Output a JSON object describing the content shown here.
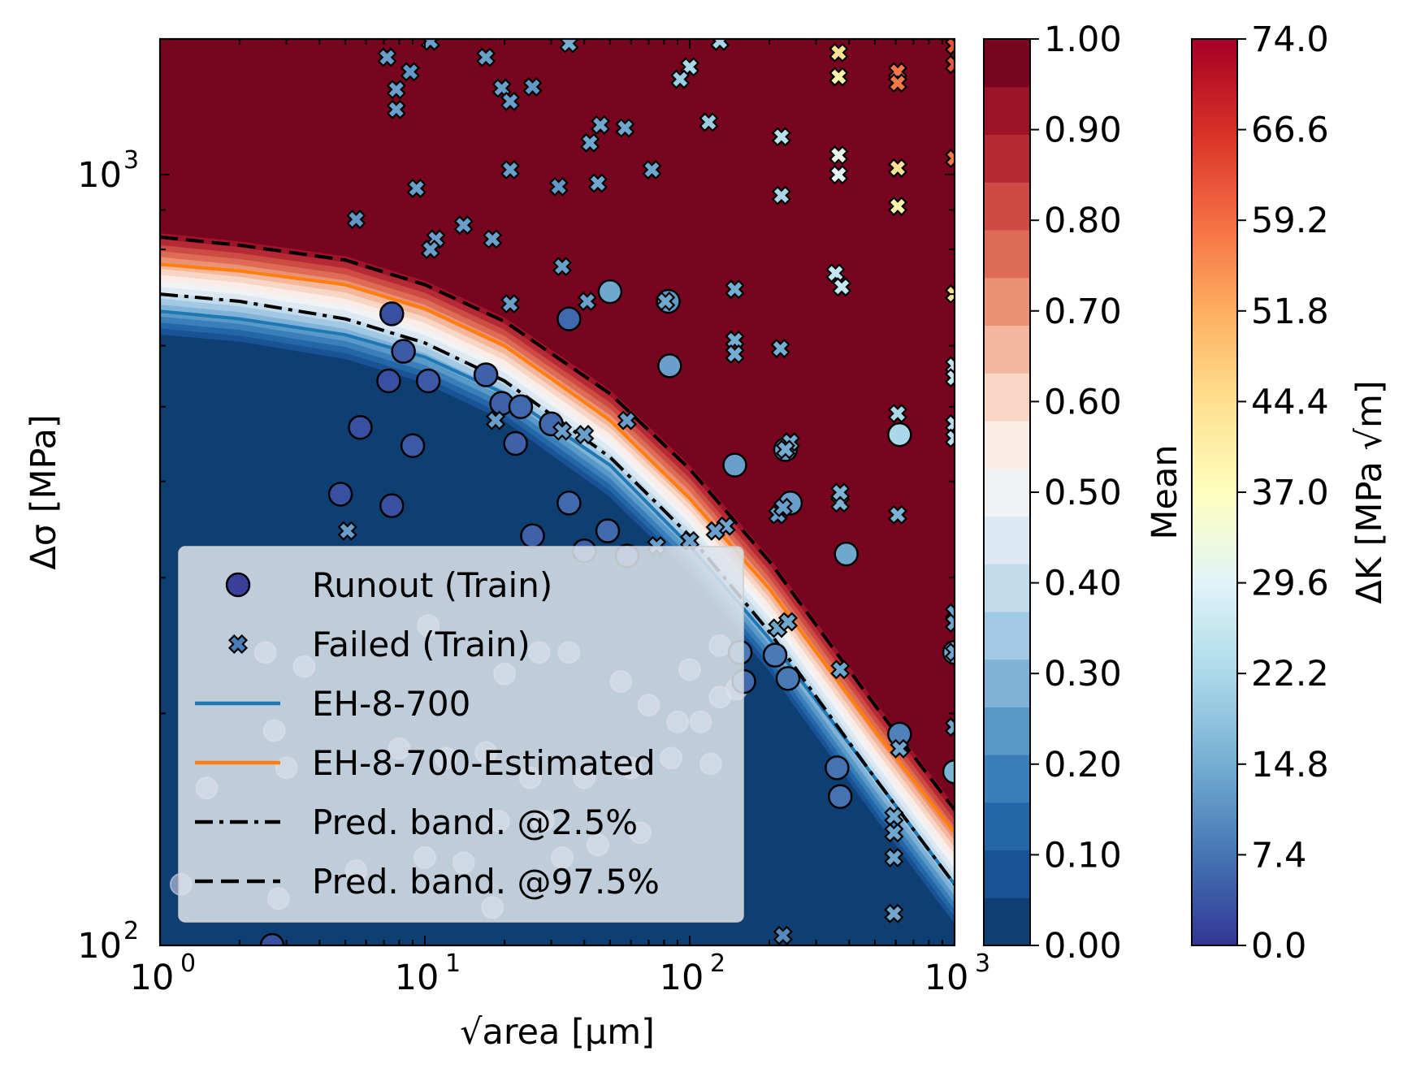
{
  "chart_data": {
    "type": "scatter",
    "title": "",
    "xlabel": "√area [μm]",
    "ylabel": "Δσ [MPa]",
    "xscale": "log",
    "yscale": "log",
    "xlim": [
      1,
      1000
    ],
    "ylim": [
      100,
      1500
    ],
    "x_ticks": [
      {
        "base": "10",
        "exp": "0"
      },
      {
        "base": "10",
        "exp": "1"
      },
      {
        "base": "10",
        "exp": "2"
      },
      {
        "base": "10",
        "exp": "3"
      }
    ],
    "y_ticks": [
      {
        "base": "10",
        "exp": "2",
        "value": 100
      },
      {
        "base": "10",
        "exp": "3",
        "value": 1000
      }
    ],
    "background": "filled contour of mean failure probability (0 below the boundary, 1 above)",
    "mean_colorbar": {
      "label": "Mean",
      "ticks": [
        "0.00",
        "0.10",
        "0.20",
        "0.30",
        "0.40",
        "0.50",
        "0.60",
        "0.70",
        "0.80",
        "0.90",
        "1.00"
      ],
      "colors": [
        "#0d3f73",
        "#1a5296",
        "#2467a8",
        "#3b7fba",
        "#5999c7",
        "#7fb2d6",
        "#a3c8e3",
        "#c3dcec",
        "#dce8f2",
        "#f0f2f4",
        "#faece6",
        "#f8d6c6",
        "#f3b79e",
        "#eb9275",
        "#dd6b55",
        "#cc4b42",
        "#b52a34",
        "#9c1428",
        "#78051f"
      ]
    },
    "dk_colorbar": {
      "label": "ΔK [MPa √m]",
      "ticks": [
        "0.0",
        "7.4",
        "14.8",
        "22.2",
        "29.6",
        "37.0",
        "44.4",
        "51.8",
        "59.2",
        "66.6",
        "74.0"
      ],
      "range": [
        0,
        74
      ],
      "colors": [
        "#313695",
        "#4575b4",
        "#74add1",
        "#abd9e9",
        "#e0f3f8",
        "#ffffbf",
        "#fee090",
        "#fdae61",
        "#f46d43",
        "#d73027",
        "#a50026"
      ]
    },
    "legend": {
      "position": "lower-left",
      "entries": [
        {
          "label": "Runout (Train)",
          "marker": "circle"
        },
        {
          "label": "Failed (Train)",
          "marker": "x"
        },
        {
          "label": "EH-8-700",
          "style": "solid",
          "color": "#1f77b4"
        },
        {
          "label": "EH-8-700-Estimated",
          "style": "solid",
          "color": "#ff7f0e"
        },
        {
          "label": "Pred. band. @2.5%",
          "style": "dashdot",
          "color": "#000000"
        },
        {
          "label": "Pred. band. @97.5%",
          "style": "dashed",
          "color": "#000000"
        }
      ]
    },
    "curves": [
      {
        "name": "EH-8-700",
        "style": "solid",
        "color": "#1f77b4",
        "x": [
          1,
          2,
          5,
          10,
          20,
          50,
          100,
          200,
          500,
          1000
        ],
        "y": [
          665,
          650,
          620,
          580,
          520,
          420,
          330,
          250,
          165,
          120
        ]
      },
      {
        "name": "EH-8-700-Estimated",
        "style": "solid",
        "color": "#ff7f0e",
        "x": [
          1,
          2,
          5,
          10,
          20,
          50,
          100,
          200,
          500,
          1000
        ],
        "y": [
          765,
          750,
          720,
          670,
          600,
          480,
          380,
          290,
          190,
          140
        ]
      },
      {
        "name": "Pred. band. @2.5%",
        "style": "dashdot",
        "color": "#000000",
        "x": [
          1,
          2,
          5,
          10,
          20,
          50,
          100,
          200,
          500,
          1000
        ],
        "y": [
          700,
          685,
          650,
          605,
          540,
          430,
          340,
          255,
          165,
          120
        ]
      },
      {
        "name": "Pred. band. @97.5%",
        "style": "dashed",
        "color": "#000000",
        "x": [
          1,
          2,
          5,
          10,
          20,
          50,
          100,
          200,
          500,
          1000
        ],
        "y": [
          830,
          810,
          775,
          720,
          645,
          520,
          415,
          315,
          205,
          150
        ]
      }
    ],
    "runout_points": [
      {
        "x": 7.5,
        "y": 660,
        "dk": 3
      },
      {
        "x": 8.3,
        "y": 590,
        "dk": 4
      },
      {
        "x": 7.3,
        "y": 540,
        "dk": 3
      },
      {
        "x": 10.3,
        "y": 540,
        "dk": 4
      },
      {
        "x": 5.7,
        "y": 470,
        "dk": 3
      },
      {
        "x": 9.0,
        "y": 445,
        "dk": 4
      },
      {
        "x": 4.8,
        "y": 385,
        "dk": 3
      },
      {
        "x": 7.5,
        "y": 372,
        "dk": 3
      },
      {
        "x": 17,
        "y": 550,
        "dk": 5
      },
      {
        "x": 19.5,
        "y": 505,
        "dk": 5
      },
      {
        "x": 23,
        "y": 500,
        "dk": 6
      },
      {
        "x": 22,
        "y": 448,
        "dk": 5
      },
      {
        "x": 30,
        "y": 475,
        "dk": 6
      },
      {
        "x": 35,
        "y": 650,
        "dk": 6
      },
      {
        "x": 35,
        "y": 375,
        "dk": 6
      },
      {
        "x": 25.5,
        "y": 340,
        "dk": 5
      },
      {
        "x": 49,
        "y": 345,
        "dk": 6
      },
      {
        "x": 40,
        "y": 325,
        "dk": 5
      },
      {
        "x": 58,
        "y": 320,
        "dk": 5
      },
      {
        "x": 50,
        "y": 705,
        "dk": 14
      },
      {
        "x": 83,
        "y": 685,
        "dk": 12
      },
      {
        "x": 84,
        "y": 565,
        "dk": 13
      },
      {
        "x": 148,
        "y": 420,
        "dk": 13
      },
      {
        "x": 240,
        "y": 375,
        "dk": 13
      },
      {
        "x": 230,
        "y": 440,
        "dk": 13
      },
      {
        "x": 390,
        "y": 322,
        "dk": 14
      },
      {
        "x": 155,
        "y": 240,
        "dk": 8
      },
      {
        "x": 160,
        "y": 220,
        "dk": 6
      },
      {
        "x": 210,
        "y": 238,
        "dk": 8
      },
      {
        "x": 235,
        "y": 222,
        "dk": 8
      },
      {
        "x": 360,
        "y": 170,
        "dk": 7
      },
      {
        "x": 370,
        "y": 156,
        "dk": 7
      },
      {
        "x": 620,
        "y": 188,
        "dk": 9
      },
      {
        "x": 1000,
        "y": 240,
        "dk": 14
      },
      {
        "x": 1000,
        "y": 168,
        "dk": 16
      },
      {
        "x": 620,
        "y": 460,
        "dk": 22
      },
      {
        "x": 2.65,
        "y": 100,
        "dk": 3
      }
    ],
    "failed_points": [
      {
        "x": 7.2,
        "y": 1420,
        "dk": 13
      },
      {
        "x": 8.8,
        "y": 1360,
        "dk": 12
      },
      {
        "x": 10.5,
        "y": 1490,
        "dk": 13
      },
      {
        "x": 7.8,
        "y": 1290,
        "dk": 13
      },
      {
        "x": 7.8,
        "y": 1215,
        "dk": 13
      },
      {
        "x": 17,
        "y": 1420,
        "dk": 13
      },
      {
        "x": 19.5,
        "y": 1295,
        "dk": 13
      },
      {
        "x": 25.5,
        "y": 1300,
        "dk": 12
      },
      {
        "x": 21,
        "y": 1245,
        "dk": 13
      },
      {
        "x": 35,
        "y": 1480,
        "dk": 15
      },
      {
        "x": 46,
        "y": 1160,
        "dk": 14
      },
      {
        "x": 57,
        "y": 1150,
        "dk": 14
      },
      {
        "x": 42,
        "y": 1100,
        "dk": 14
      },
      {
        "x": 21,
        "y": 1015,
        "dk": 13
      },
      {
        "x": 32,
        "y": 965,
        "dk": 12
      },
      {
        "x": 45,
        "y": 975,
        "dk": 14
      },
      {
        "x": 72,
        "y": 1015,
        "dk": 14
      },
      {
        "x": 9.3,
        "y": 960,
        "dk": 13
      },
      {
        "x": 5.5,
        "y": 875,
        "dk": 12
      },
      {
        "x": 11,
        "y": 825,
        "dk": 13
      },
      {
        "x": 14,
        "y": 860,
        "dk": 13
      },
      {
        "x": 18,
        "y": 825,
        "dk": 13
      },
      {
        "x": 10.5,
        "y": 800,
        "dk": 13
      },
      {
        "x": 33,
        "y": 760,
        "dk": 13
      },
      {
        "x": 21,
        "y": 680,
        "dk": 13
      },
      {
        "x": 41,
        "y": 685,
        "dk": 13
      },
      {
        "x": 81,
        "y": 685,
        "dk": 14
      },
      {
        "x": 148,
        "y": 710,
        "dk": 15
      },
      {
        "x": 148,
        "y": 610,
        "dk": 15
      },
      {
        "x": 148,
        "y": 585,
        "dk": 15
      },
      {
        "x": 220,
        "y": 595,
        "dk": 15
      },
      {
        "x": 58,
        "y": 480,
        "dk": 13
      },
      {
        "x": 18.5,
        "y": 480,
        "dk": 13
      },
      {
        "x": 33,
        "y": 465,
        "dk": 13
      },
      {
        "x": 40,
        "y": 460,
        "dk": 13
      },
      {
        "x": 5.1,
        "y": 345,
        "dk": 13
      },
      {
        "x": 75,
        "y": 330,
        "dk": 13
      },
      {
        "x": 100,
        "y": 335,
        "dk": 13
      },
      {
        "x": 137,
        "y": 350,
        "dk": 14
      },
      {
        "x": 125,
        "y": 345,
        "dk": 13
      },
      {
        "x": 215,
        "y": 362,
        "dk": 13
      },
      {
        "x": 225,
        "y": 370,
        "dk": 13
      },
      {
        "x": 240,
        "y": 450,
        "dk": 15
      },
      {
        "x": 230,
        "y": 440,
        "dk": 15
      },
      {
        "x": 370,
        "y": 375,
        "dk": 16
      },
      {
        "x": 370,
        "y": 387,
        "dk": 16
      },
      {
        "x": 610,
        "y": 362,
        "dk": 16
      },
      {
        "x": 215,
        "y": 258,
        "dk": 14
      },
      {
        "x": 235,
        "y": 263,
        "dk": 14
      },
      {
        "x": 370,
        "y": 228,
        "dk": 14
      },
      {
        "x": 620,
        "y": 180,
        "dk": 14
      },
      {
        "x": 590,
        "y": 147,
        "dk": 14
      },
      {
        "x": 590,
        "y": 140,
        "dk": 14
      },
      {
        "x": 590,
        "y": 130,
        "dk": 14
      },
      {
        "x": 590,
        "y": 110,
        "dk": 14
      },
      {
        "x": 1000,
        "y": 1390,
        "dk": 62
      },
      {
        "x": 1000,
        "y": 1470,
        "dk": 62
      },
      {
        "x": 1000,
        "y": 1050,
        "dk": 58
      },
      {
        "x": 1000,
        "y": 700,
        "dk": 44
      },
      {
        "x": 1000,
        "y": 565,
        "dk": 26
      },
      {
        "x": 1000,
        "y": 545,
        "dk": 26
      },
      {
        "x": 1000,
        "y": 475,
        "dk": 24
      },
      {
        "x": 1000,
        "y": 455,
        "dk": 24
      },
      {
        "x": 1000,
        "y": 270,
        "dk": 14
      },
      {
        "x": 1000,
        "y": 262,
        "dk": 14
      },
      {
        "x": 1000,
        "y": 240,
        "dk": 14
      },
      {
        "x": 1000,
        "y": 192,
        "dk": 14
      },
      {
        "x": 610,
        "y": 1360,
        "dk": 58
      },
      {
        "x": 610,
        "y": 1315,
        "dk": 58
      },
      {
        "x": 610,
        "y": 1020,
        "dk": 44
      },
      {
        "x": 610,
        "y": 910,
        "dk": 40
      },
      {
        "x": 610,
        "y": 490,
        "dk": 22
      },
      {
        "x": 365,
        "y": 1440,
        "dk": 44
      },
      {
        "x": 365,
        "y": 1340,
        "dk": 40
      },
      {
        "x": 365,
        "y": 1060,
        "dk": 32
      },
      {
        "x": 365,
        "y": 1000,
        "dk": 30
      },
      {
        "x": 355,
        "y": 745,
        "dk": 26
      },
      {
        "x": 375,
        "y": 715,
        "dk": 26
      },
      {
        "x": 222,
        "y": 1120,
        "dk": 24
      },
      {
        "x": 222,
        "y": 940,
        "dk": 22
      },
      {
        "x": 100,
        "y": 1380,
        "dk": 22
      },
      {
        "x": 92,
        "y": 1330,
        "dk": 20
      },
      {
        "x": 130,
        "y": 1490,
        "dk": 22
      },
      {
        "x": 118,
        "y": 1170,
        "dk": 20
      },
      {
        "x": 225,
        "y": 103,
        "dk": 10
      }
    ],
    "faint_points": [
      {
        "x": 2.5,
        "y": 240
      },
      {
        "x": 3.5,
        "y": 230
      },
      {
        "x": 10.3,
        "y": 260
      },
      {
        "x": 20,
        "y": 225
      },
      {
        "x": 27,
        "y": 240
      },
      {
        "x": 35,
        "y": 240
      },
      {
        "x": 55,
        "y": 220
      },
      {
        "x": 70,
        "y": 205
      },
      {
        "x": 90,
        "y": 195
      },
      {
        "x": 110,
        "y": 195
      },
      {
        "x": 130,
        "y": 210
      },
      {
        "x": 150,
        "y": 215
      },
      {
        "x": 2.7,
        "y": 190
      },
      {
        "x": 8,
        "y": 180
      },
      {
        "x": 12,
        "y": 175
      },
      {
        "x": 17,
        "y": 178
      },
      {
        "x": 25,
        "y": 165
      },
      {
        "x": 40,
        "y": 165
      },
      {
        "x": 60,
        "y": 170
      },
      {
        "x": 85,
        "y": 175
      },
      {
        "x": 120,
        "y": 172
      },
      {
        "x": 3,
        "y": 170
      },
      {
        "x": 19,
        "y": 145
      },
      {
        "x": 28,
        "y": 145
      },
      {
        "x": 33,
        "y": 130
      },
      {
        "x": 45,
        "y": 135
      },
      {
        "x": 65,
        "y": 140
      },
      {
        "x": 5.5,
        "y": 125
      },
      {
        "x": 10,
        "y": 130
      },
      {
        "x": 14,
        "y": 128
      },
      {
        "x": 1.2,
        "y": 120
      },
      {
        "x": 1.5,
        "y": 160
      },
      {
        "x": 2.8,
        "y": 115
      },
      {
        "x": 18,
        "y": 112
      },
      {
        "x": 100,
        "y": 228
      },
      {
        "x": 130,
        "y": 245
      }
    ]
  }
}
